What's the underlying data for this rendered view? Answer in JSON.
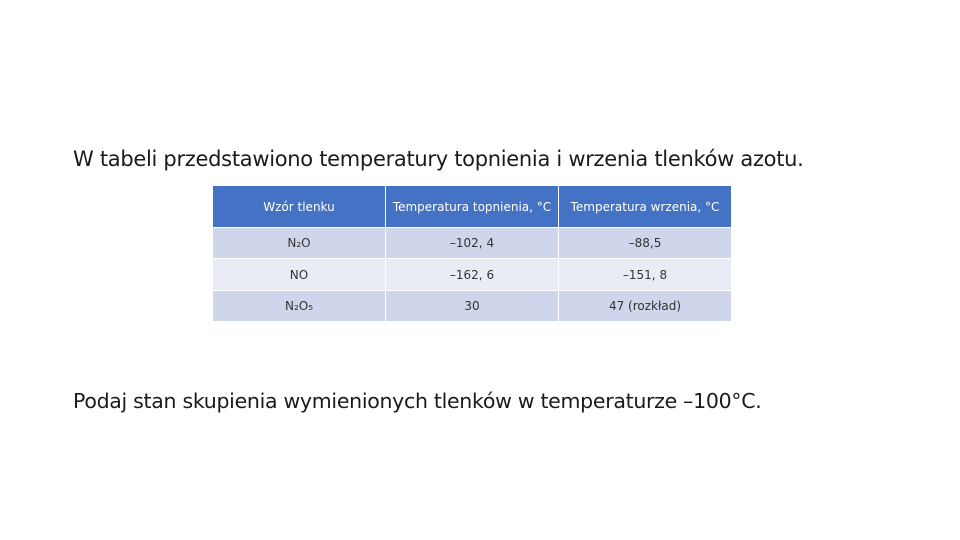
{
  "intro": "W tabeli przedstawiono temperatury topnienia i wrzenia tlenków azotu.",
  "table": {
    "header": [
      "Wzór tlenku",
      "Temperatura topnienia, °C",
      "Temperatura wrzenia, °C"
    ],
    "rows": [
      [
        "N₂O",
        "–102, 4",
        "–88,5"
      ],
      [
        "NO",
        "–162, 6",
        "–151, 8"
      ],
      [
        "N₂O₅",
        "30",
        "47 (rozkład)"
      ]
    ]
  },
  "question": "Podaj stan skupienia wymienionych tlenków w temperaturze –100°C."
}
